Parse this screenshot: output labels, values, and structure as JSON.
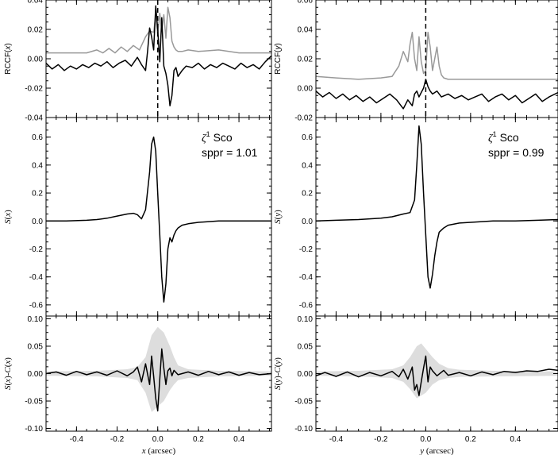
{
  "figure": {
    "columns": [
      {
        "name": "x",
        "xlabel": {
          "var": "x",
          "unit": "(arcsec)"
        },
        "xlim": [
          -0.55,
          0.56
        ],
        "xticks": [
          -0.4,
          -0.2,
          0.0,
          0.2,
          0.4
        ],
        "xtick_labels": [
          "-0.4",
          "-0.2",
          "0.0",
          "0.2",
          "0.4"
        ]
      },
      {
        "name": "y",
        "xlabel": {
          "var": "y",
          "unit": "(arcsec)"
        },
        "xlim": [
          -0.49,
          0.59
        ],
        "xticks": [
          -0.4,
          -0.2,
          0.0,
          0.2,
          0.4
        ],
        "xtick_labels": [
          "-0.4",
          "-0.2",
          "0.0",
          "0.2",
          "0.4"
        ]
      }
    ],
    "annotations": [
      {
        "col": 0,
        "star_greek": "ζ",
        "star_sup": "1",
        "star_name": " Sco",
        "sppr": "sppr = 1.01"
      },
      {
        "col": 1,
        "star_greek": "ζ",
        "star_sup": "1",
        "star_name": " Sco",
        "sppr": "sppr = 0.99"
      }
    ]
  },
  "chart_data": [
    {
      "type": "line",
      "panel": "RCCF(x)",
      "ylabel": {
        "func": "RCCF",
        "arg": "x"
      },
      "ylim": [
        -0.04,
        0.04
      ],
      "yticks": [
        -0.04,
        -0.02,
        0.0,
        0.02,
        0.04
      ],
      "ytick_labels": [
        "-0.04",
        "-0.02",
        "0.00",
        "0.02",
        "0.04"
      ],
      "vline_x": 0.0,
      "series": [
        {
          "color": "#999999",
          "x": [
            -0.55,
            -0.45,
            -0.35,
            -0.3,
            -0.27,
            -0.24,
            -0.21,
            -0.18,
            -0.15,
            -0.12,
            -0.09,
            -0.06,
            -0.04,
            -0.02,
            -0.01,
            0.0,
            0.01,
            0.02,
            0.03,
            0.04,
            0.05,
            0.06,
            0.07,
            0.08,
            0.09,
            0.1,
            0.12,
            0.15,
            0.2,
            0.3,
            0.4,
            0.5,
            0.56
          ],
          "y": [
            0.004,
            0.004,
            0.004,
            0.006,
            0.004,
            0.007,
            0.004,
            0.008,
            0.005,
            0.009,
            0.006,
            0.015,
            0.019,
            0.018,
            0.03,
            0.016,
            0.031,
            0.019,
            0.03,
            0.014,
            0.035,
            0.028,
            0.012,
            0.008,
            0.006,
            0.005,
            0.005,
            0.006,
            0.005,
            0.006,
            0.004,
            0.004,
            0.004
          ]
        },
        {
          "color": "#000000",
          "x": [
            -0.55,
            -0.52,
            -0.49,
            -0.46,
            -0.43,
            -0.4,
            -0.37,
            -0.34,
            -0.31,
            -0.28,
            -0.25,
            -0.22,
            -0.19,
            -0.16,
            -0.13,
            -0.1,
            -0.08,
            -0.06,
            -0.05,
            -0.04,
            -0.03,
            -0.02,
            -0.01,
            0.0,
            0.01,
            0.02,
            0.03,
            0.04,
            0.05,
            0.06,
            0.07,
            0.08,
            0.09,
            0.1,
            0.12,
            0.14,
            0.17,
            0.2,
            0.23,
            0.26,
            0.29,
            0.32,
            0.35,
            0.38,
            0.41,
            0.44,
            0.47,
            0.5,
            0.53,
            0.56
          ],
          "y": [
            -0.003,
            -0.007,
            -0.004,
            -0.008,
            -0.005,
            -0.007,
            -0.004,
            -0.006,
            -0.003,
            -0.005,
            -0.002,
            -0.006,
            -0.003,
            -0.001,
            -0.005,
            0.001,
            -0.004,
            -0.008,
            0.005,
            0.021,
            0.015,
            0.006,
            0.036,
            0.02,
            -0.002,
            0.028,
            -0.005,
            -0.01,
            -0.018,
            -0.032,
            -0.025,
            -0.008,
            -0.006,
            -0.012,
            -0.008,
            -0.005,
            -0.006,
            -0.003,
            -0.007,
            -0.004,
            -0.006,
            -0.003,
            -0.005,
            -0.007,
            -0.003,
            -0.006,
            -0.004,
            -0.007,
            -0.002,
            0.002
          ]
        }
      ]
    },
    {
      "type": "line",
      "panel": "S(x)",
      "ylabel": {
        "func": "S",
        "arg": "x"
      },
      "ylim": [
        -0.68,
        0.74
      ],
      "yticks": [
        -0.6,
        -0.4,
        -0.2,
        0.0,
        0.2,
        0.4,
        0.6
      ],
      "ytick_labels": [
        "-0.6",
        "-0.4",
        "-0.2",
        "0.0",
        "0.2",
        "0.4",
        "0.6"
      ],
      "series": [
        {
          "color": "#000000",
          "x": [
            -0.55,
            -0.45,
            -0.35,
            -0.3,
            -0.25,
            -0.2,
            -0.15,
            -0.12,
            -0.1,
            -0.08,
            -0.06,
            -0.04,
            -0.03,
            -0.02,
            -0.01,
            0.0,
            0.01,
            0.02,
            0.03,
            0.04,
            0.05,
            0.06,
            0.07,
            0.08,
            0.09,
            0.1,
            0.12,
            0.15,
            0.2,
            0.3,
            0.4,
            0.5,
            0.56
          ],
          "y": [
            0.0,
            0.0,
            0.005,
            0.01,
            0.02,
            0.035,
            0.05,
            0.055,
            0.045,
            0.015,
            0.08,
            0.35,
            0.55,
            0.6,
            0.5,
            0.2,
            -0.1,
            -0.4,
            -0.58,
            -0.45,
            -0.2,
            -0.12,
            -0.15,
            -0.1,
            -0.07,
            -0.05,
            -0.03,
            -0.02,
            -0.01,
            0.0,
            0.0,
            0.0,
            0.0
          ]
        }
      ]
    },
    {
      "type": "area",
      "panel": "S(x)-C(x)",
      "ylabel": {
        "func": "S",
        "arg": "x",
        "minus_func": "C"
      },
      "ylim": [
        -0.105,
        0.105
      ],
      "yticks": [
        -0.1,
        -0.05,
        0.0,
        0.05,
        0.1
      ],
      "ytick_labels": [
        "-0.10",
        "-0.05",
        "0.00",
        "0.05",
        "0.10"
      ],
      "band": {
        "color": "#dddddd",
        "x": [
          -0.55,
          -0.3,
          -0.15,
          -0.1,
          -0.06,
          -0.03,
          0.0,
          0.03,
          0.06,
          0.08,
          0.1,
          0.15,
          0.3,
          0.56
        ],
        "upper": [
          0.004,
          0.005,
          0.008,
          0.012,
          0.03,
          0.07,
          0.085,
          0.075,
          0.05,
          0.03,
          0.015,
          0.008,
          0.005,
          0.004
        ],
        "lower": [
          -0.004,
          -0.005,
          -0.008,
          -0.012,
          -0.035,
          -0.07,
          -0.06,
          -0.05,
          -0.03,
          -0.02,
          -0.012,
          -0.008,
          -0.005,
          -0.004
        ]
      },
      "series": [
        {
          "color": "#000000",
          "x": [
            -0.55,
            -0.5,
            -0.45,
            -0.4,
            -0.35,
            -0.3,
            -0.25,
            -0.2,
            -0.15,
            -0.12,
            -0.1,
            -0.08,
            -0.06,
            -0.04,
            -0.03,
            -0.02,
            -0.01,
            0.0,
            0.01,
            0.02,
            0.03,
            0.04,
            0.05,
            0.06,
            0.07,
            0.08,
            0.1,
            0.15,
            0.2,
            0.25,
            0.3,
            0.35,
            0.4,
            0.45,
            0.5,
            0.56
          ],
          "y": [
            0.0,
            0.003,
            -0.003,
            0.004,
            -0.002,
            0.003,
            -0.003,
            0.005,
            -0.004,
            0.003,
            0.012,
            -0.015,
            0.018,
            -0.02,
            0.032,
            -0.005,
            -0.045,
            -0.068,
            -0.01,
            0.045,
            0.01,
            -0.02,
            0.005,
            0.01,
            -0.004,
            0.006,
            -0.002,
            0.003,
            -0.003,
            0.004,
            -0.002,
            0.003,
            -0.003,
            0.002,
            -0.002,
            0.0
          ]
        }
      ]
    },
    {
      "type": "line",
      "panel": "RCCF(y)",
      "ylabel": {
        "func": "RCCF",
        "arg": "y"
      },
      "ylim": [
        -0.02,
        0.06
      ],
      "yticks": [
        -0.02,
        0.0,
        0.02,
        0.04,
        0.06
      ],
      "ytick_labels": [
        "-0.02",
        "0.00",
        "0.02",
        "0.04",
        "0.06"
      ],
      "vline_x": 0.0,
      "series": [
        {
          "color": "#999999",
          "x": [
            -0.49,
            -0.4,
            -0.3,
            -0.2,
            -0.15,
            -0.12,
            -0.1,
            -0.08,
            -0.07,
            -0.06,
            -0.05,
            -0.04,
            -0.03,
            -0.02,
            -0.01,
            0.0,
            0.01,
            0.02,
            0.03,
            0.04,
            0.05,
            0.06,
            0.07,
            0.08,
            0.1,
            0.15,
            0.2,
            0.3,
            0.4,
            0.5,
            0.59
          ],
          "y": [
            0.008,
            0.007,
            0.006,
            0.007,
            0.008,
            0.015,
            0.025,
            0.018,
            0.03,
            0.038,
            0.02,
            0.012,
            0.035,
            0.018,
            0.01,
            0.012,
            0.038,
            0.028,
            0.012,
            0.02,
            0.028,
            0.015,
            0.009,
            0.007,
            0.006,
            0.006,
            0.006,
            0.006,
            0.006,
            0.006,
            0.006
          ]
        },
        {
          "color": "#000000",
          "x": [
            -0.49,
            -0.46,
            -0.43,
            -0.4,
            -0.37,
            -0.34,
            -0.31,
            -0.28,
            -0.25,
            -0.22,
            -0.19,
            -0.16,
            -0.13,
            -0.1,
            -0.08,
            -0.06,
            -0.05,
            -0.04,
            -0.03,
            -0.02,
            -0.01,
            0.0,
            0.01,
            0.02,
            0.03,
            0.05,
            0.07,
            0.1,
            0.13,
            0.16,
            0.19,
            0.22,
            0.25,
            0.28,
            0.31,
            0.34,
            0.37,
            0.4,
            0.43,
            0.46,
            0.49,
            0.52,
            0.55,
            0.59
          ],
          "y": [
            -0.002,
            -0.006,
            -0.003,
            -0.007,
            -0.004,
            -0.008,
            -0.005,
            -0.009,
            -0.006,
            -0.01,
            -0.007,
            -0.004,
            -0.008,
            -0.014,
            -0.008,
            -0.012,
            -0.004,
            -0.002,
            -0.006,
            -0.003,
            0.0,
            0.006,
            0.001,
            -0.002,
            -0.004,
            -0.002,
            -0.006,
            -0.004,
            -0.007,
            -0.005,
            -0.008,
            -0.006,
            -0.004,
            -0.009,
            -0.006,
            -0.004,
            -0.008,
            -0.005,
            -0.01,
            -0.007,
            -0.004,
            -0.009,
            -0.006,
            -0.003
          ]
        }
      ]
    },
    {
      "type": "line",
      "panel": "S(y)",
      "ylabel": {
        "func": "S",
        "arg": "y"
      },
      "ylim": [
        -0.68,
        0.74
      ],
      "yticks": [
        -0.6,
        -0.4,
        -0.2,
        0.0,
        0.2,
        0.4,
        0.6
      ],
      "ytick_labels": [
        "-0.6",
        "-0.4",
        "-0.2",
        "0.0",
        "0.2",
        "0.4",
        "0.6"
      ],
      "series": [
        {
          "color": "#000000",
          "x": [
            -0.49,
            -0.4,
            -0.3,
            -0.2,
            -0.15,
            -0.1,
            -0.07,
            -0.05,
            -0.04,
            -0.03,
            -0.02,
            -0.01,
            0.0,
            0.01,
            0.02,
            0.03,
            0.04,
            0.05,
            0.06,
            0.08,
            0.1,
            0.15,
            0.2,
            0.3,
            0.4,
            0.5,
            0.59
          ],
          "y": [
            0.0,
            0.005,
            0.01,
            0.02,
            0.03,
            0.05,
            0.06,
            0.15,
            0.4,
            0.68,
            0.55,
            0.2,
            -0.1,
            -0.4,
            -0.48,
            -0.38,
            -0.25,
            -0.15,
            -0.08,
            -0.05,
            -0.03,
            -0.015,
            -0.01,
            0.0,
            0.0,
            0.005,
            0.01
          ]
        }
      ]
    },
    {
      "type": "area",
      "panel": "S(y)-C(y)",
      "ylabel": {
        "func": "S",
        "arg": "y",
        "minus_func": "C"
      },
      "ylim": [
        -0.105,
        0.105
      ],
      "yticks": [
        -0.1,
        -0.05,
        0.0,
        0.05,
        0.1
      ],
      "ytick_labels": [
        "-0.10",
        "-0.05",
        "0.00",
        "0.05",
        "0.10"
      ],
      "band": {
        "color": "#dddddd",
        "x": [
          -0.49,
          -0.3,
          -0.15,
          -0.1,
          -0.07,
          -0.04,
          -0.02,
          0.0,
          0.03,
          0.06,
          0.1,
          0.15,
          0.3,
          0.59
        ],
        "upper": [
          0.004,
          0.005,
          0.008,
          0.015,
          0.03,
          0.05,
          0.055,
          0.045,
          0.03,
          0.018,
          0.01,
          0.007,
          0.005,
          0.004
        ],
        "lower": [
          -0.004,
          -0.005,
          -0.008,
          -0.015,
          -0.028,
          -0.045,
          -0.04,
          -0.035,
          -0.02,
          -0.012,
          -0.008,
          -0.006,
          -0.005,
          -0.004
        ]
      },
      "series": [
        {
          "color": "#000000",
          "x": [
            -0.49,
            -0.45,
            -0.4,
            -0.35,
            -0.3,
            -0.25,
            -0.2,
            -0.15,
            -0.12,
            -0.1,
            -0.08,
            -0.06,
            -0.05,
            -0.04,
            -0.03,
            -0.02,
            -0.01,
            0.0,
            0.01,
            0.02,
            0.03,
            0.05,
            0.08,
            0.1,
            0.15,
            0.2,
            0.25,
            0.3,
            0.35,
            0.4,
            0.45,
            0.5,
            0.55,
            0.59
          ],
          "y": [
            -0.004,
            0.002,
            -0.005,
            0.003,
            -0.006,
            0.002,
            -0.004,
            0.004,
            -0.006,
            0.008,
            -0.01,
            0.012,
            -0.03,
            -0.02,
            -0.04,
            -0.015,
            0.01,
            0.032,
            -0.015,
            0.012,
            0.005,
            -0.004,
            0.006,
            -0.003,
            0.002,
            -0.004,
            0.003,
            -0.002,
            0.004,
            0.002,
            0.005,
            0.004,
            0.008,
            0.006
          ]
        }
      ]
    }
  ]
}
